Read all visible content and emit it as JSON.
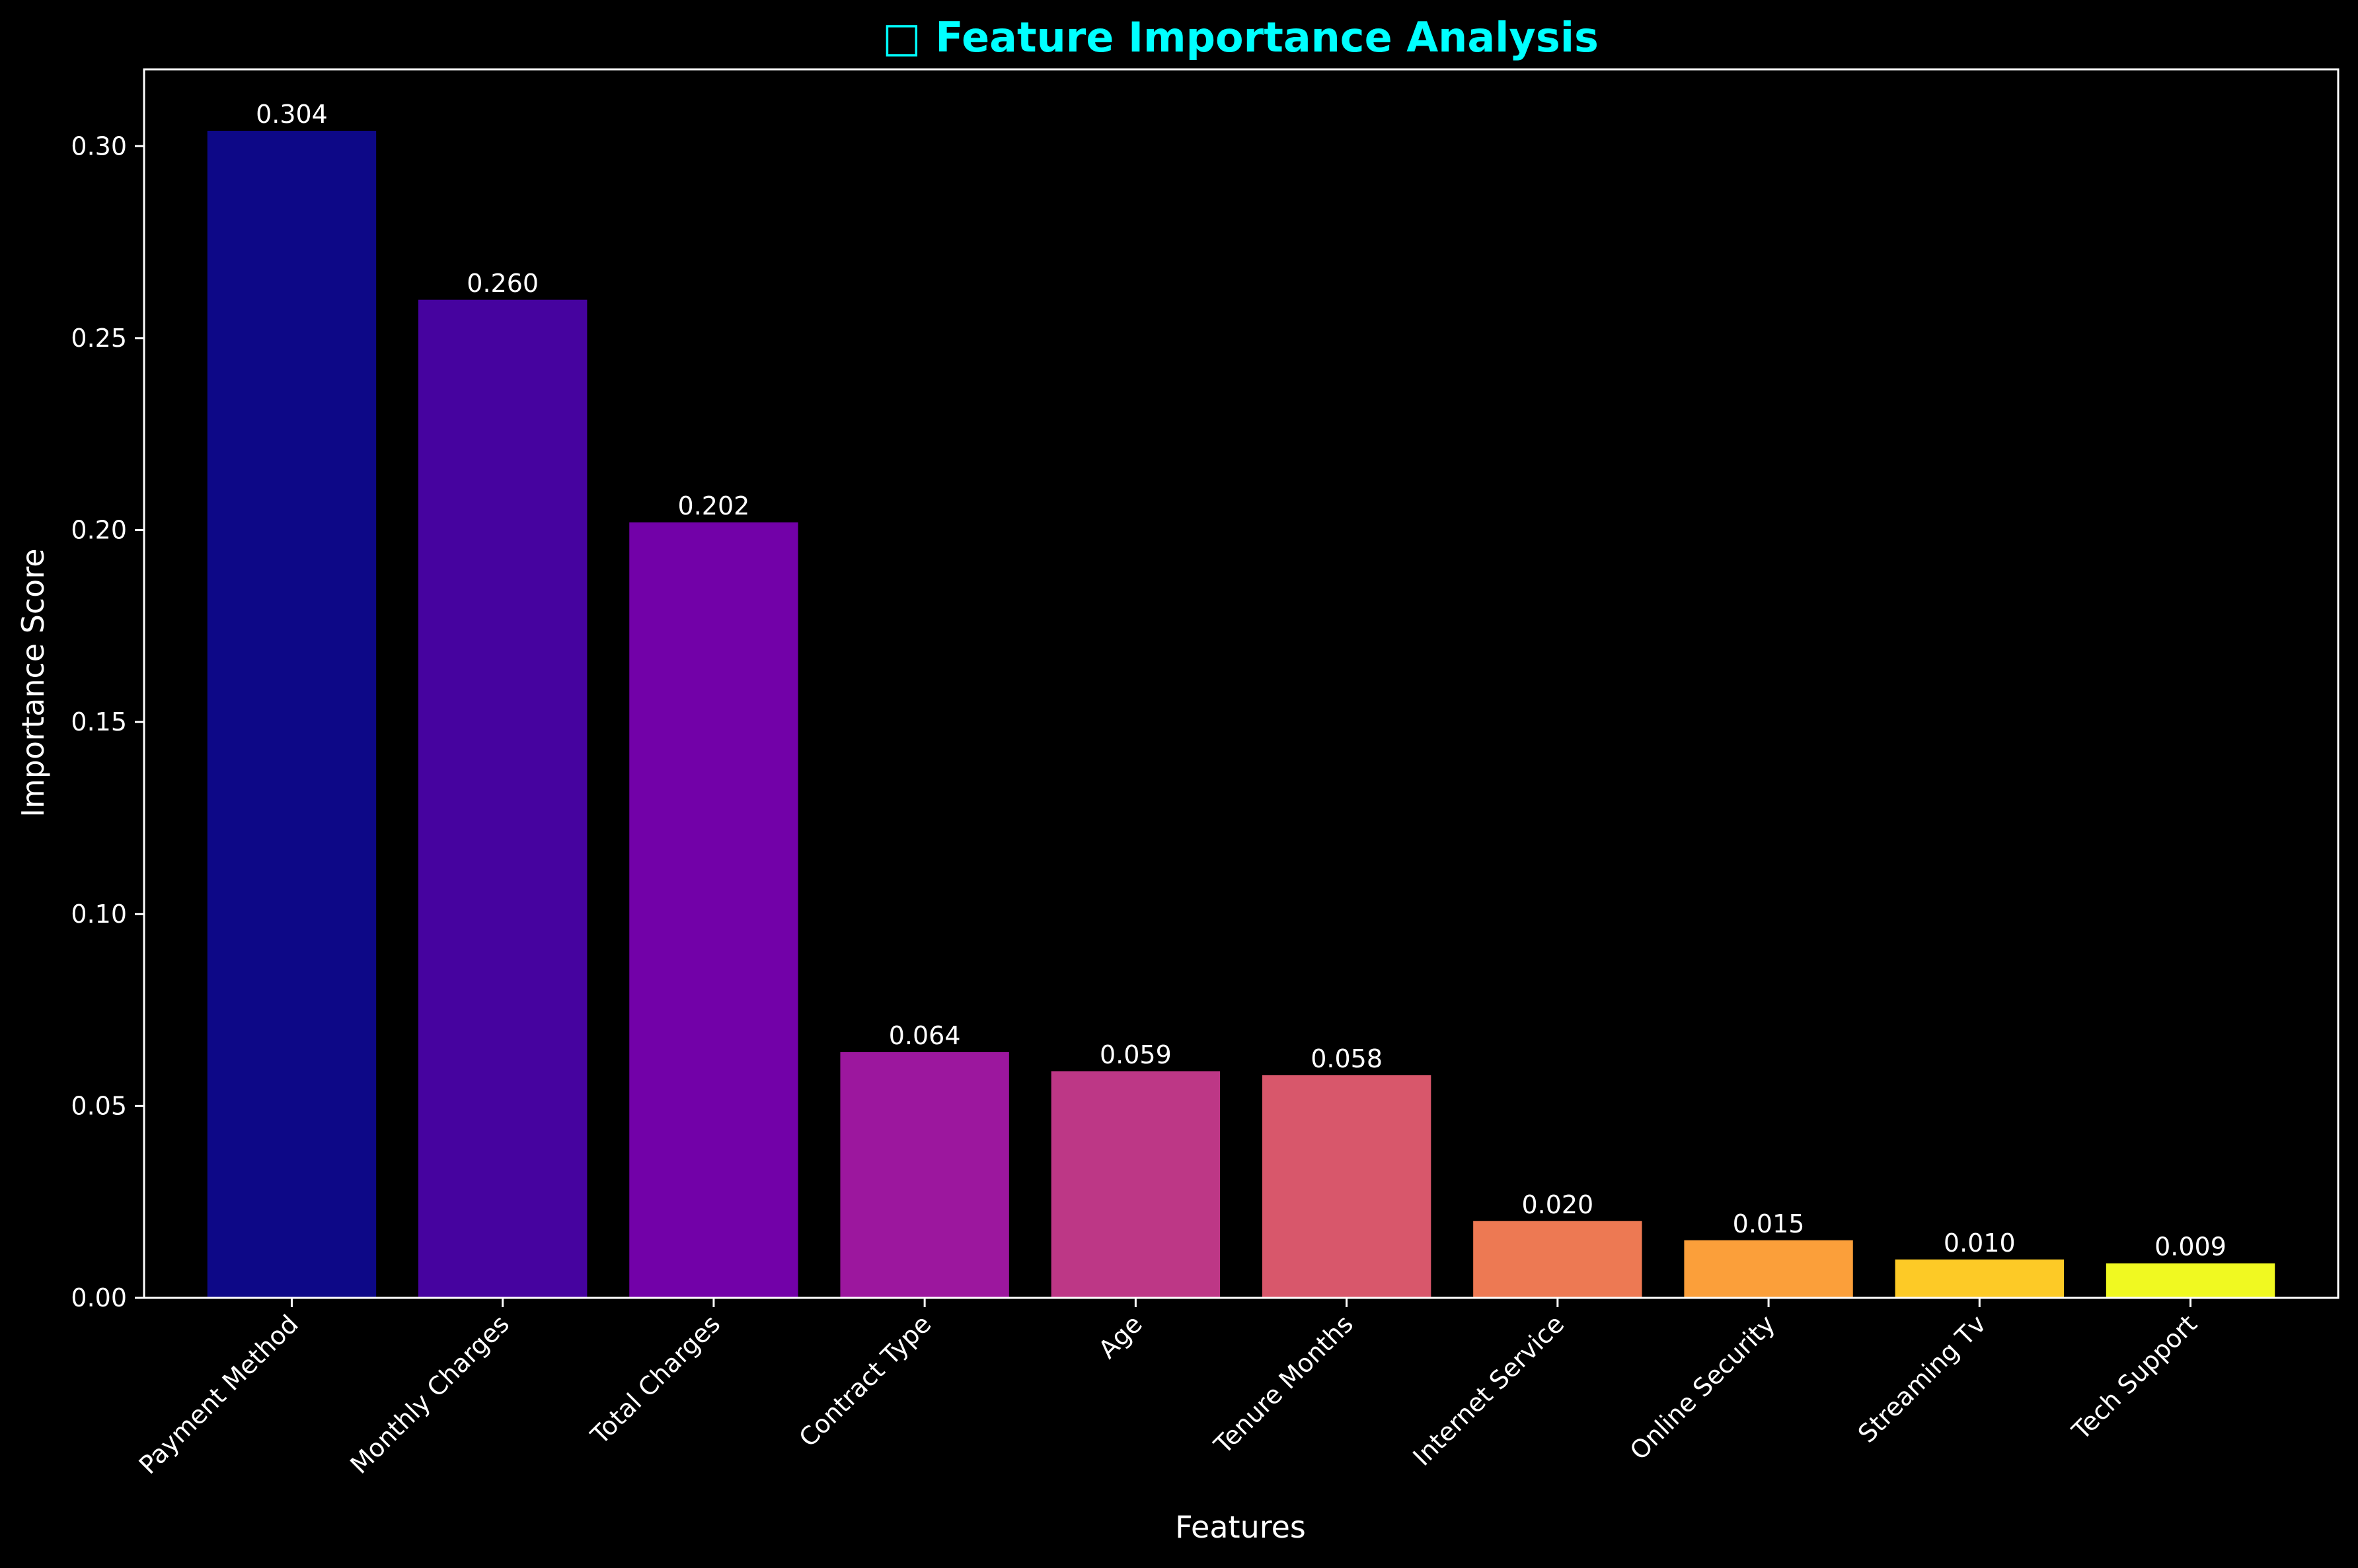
{
  "chart_data": {
    "type": "bar",
    "title": "□ Feature Importance Analysis",
    "xlabel": "Features",
    "ylabel": "Importance Score",
    "categories": [
      "Payment Method",
      "Monthly Charges",
      "Total Charges",
      "Contract Type",
      "Age",
      "Tenure Months",
      "Internet Service",
      "Online Security",
      "Streaming Tv",
      "Tech Support"
    ],
    "values": [
      0.304,
      0.26,
      0.202,
      0.064,
      0.059,
      0.058,
      0.02,
      0.015,
      0.01,
      0.009
    ],
    "value_labels": [
      "0.304",
      "0.260",
      "0.202",
      "0.064",
      "0.059",
      "0.058",
      "0.020",
      "0.015",
      "0.010",
      "0.009"
    ],
    "ylim": [
      0,
      0.32
    ],
    "yticks": [
      0.0,
      0.05,
      0.1,
      0.15,
      0.2,
      0.25,
      0.3
    ],
    "ytick_labels": [
      "0.00",
      "0.05",
      "0.10",
      "0.15",
      "0.20",
      "0.25",
      "0.30"
    ],
    "grid": false,
    "legend": "none",
    "colors": {
      "background": "#000000",
      "title": "#00FFFF",
      "text": "#FFFFFF",
      "axes": "#FFFFFF",
      "bars": [
        "#0D0887",
        "#46039F",
        "#7201A8",
        "#9C179E",
        "#BD3786",
        "#D8576B",
        "#ED7953",
        "#FB9F3A",
        "#FDCA26",
        "#F0F921"
      ]
    }
  }
}
